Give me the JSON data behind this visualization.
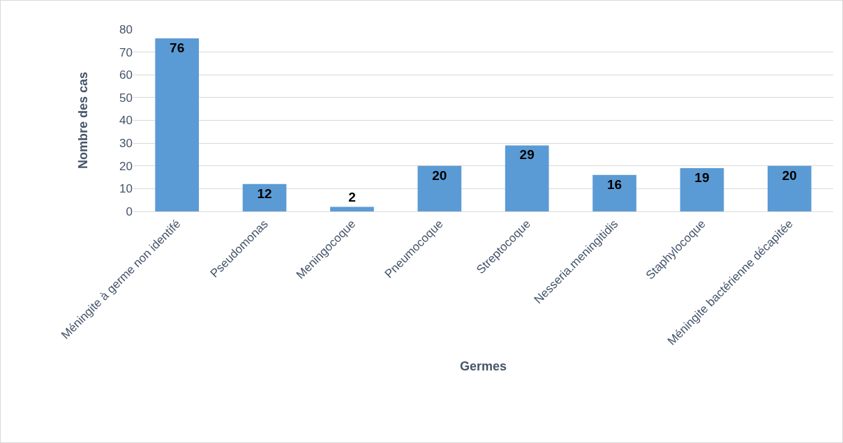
{
  "chart_data": {
    "type": "bar",
    "xlabel": "Germes",
    "ylabel": "Nombre des cas",
    "categories": [
      "Méningite à germe non identifé",
      "Pseudomonas",
      "Meningocoque",
      "Pneumocoque",
      "Streptocoque",
      "Nesseria.meningitidis",
      "Staphylocoque",
      "Méningite bactérienne décapitée"
    ],
    "values": [
      76,
      12,
      2,
      20,
      29,
      16,
      19,
      20
    ],
    "color": "#5b9bd5",
    "ylim": [
      0,
      80
    ],
    "yticks": [
      0,
      10,
      20,
      30,
      40,
      50,
      60,
      70,
      80
    ],
    "grid": "y",
    "data_labels": true
  }
}
